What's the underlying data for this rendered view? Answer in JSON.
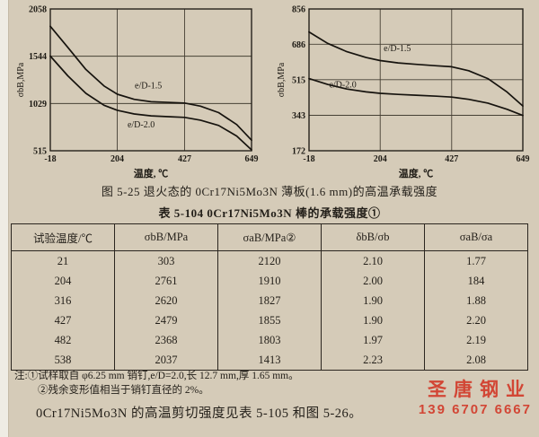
{
  "page": {
    "figure_caption": "图 5-25  退火态的 0Cr17Ni5Mo3N 薄板(1.6 mm)的高温承载强度",
    "table_title": "表 5-104  0Cr17Ni5Mo3N 棒的承载强度①",
    "notes": [
      "注:①试样取自 φ6.25 mm 销钉,e/D=2.0,长 12.7 mm,厚 1.65 mm。",
      "②残余变形值相当于销钉直径的 2%。"
    ],
    "footer_text": "0Cr17Ni5Mo3N 的高温剪切强度见表 5-105 和图 5-26。",
    "watermark": {
      "company": "圣唐钢业",
      "phone": "139 6707 6667",
      "color": "#d23423"
    }
  },
  "table": {
    "headers": [
      "试验温度/℃",
      "σbB/MPa",
      "σaB/MPa②",
      "δbB/σb",
      "σaB/σa"
    ],
    "rows": [
      [
        "21",
        "303",
        "2120",
        "2.10",
        "1.77"
      ],
      [
        "204",
        "2761",
        "1910",
        "2.00",
        "184"
      ],
      [
        "316",
        "2620",
        "1827",
        "1.90",
        "1.88"
      ],
      [
        "427",
        "2479",
        "1855",
        "1.90",
        "2.20"
      ],
      [
        "482",
        "2368",
        "1803",
        "1.97",
        "2.19"
      ],
      [
        "538",
        "2037",
        "1413",
        "2.23",
        "2.08"
      ]
    ]
  },
  "chart_data": [
    {
      "type": "line",
      "title": "",
      "xlabel": "温度, ℃",
      "ylabel": "σbB,MPa",
      "xlim": [
        -18,
        649
      ],
      "ylim": [
        515,
        2058
      ],
      "xticks": [
        -18,
        204,
        427,
        649
      ],
      "yticks": [
        515,
        1029,
        1544,
        2058
      ],
      "grid": true,
      "series": [
        {
          "name": "e/D-1.5",
          "label_at": [
            262,
            1195
          ],
          "points": [
            [
              -18,
              1870
            ],
            [
              40,
              1640
            ],
            [
              100,
              1400
            ],
            [
              160,
              1220
            ],
            [
              204,
              1130
            ],
            [
              260,
              1075
            ],
            [
              316,
              1048
            ],
            [
              380,
              1040
            ],
            [
              427,
              1035
            ],
            [
              480,
              1000
            ],
            [
              540,
              930
            ],
            [
              600,
              800
            ],
            [
              649,
              630
            ]
          ]
        },
        {
          "name": "e/D-2.0",
          "label_at": [
            238,
            770
          ],
          "points": [
            [
              -18,
              1545
            ],
            [
              40,
              1330
            ],
            [
              100,
              1140
            ],
            [
              160,
              1010
            ],
            [
              204,
              955
            ],
            [
              260,
              915
            ],
            [
              316,
              895
            ],
            [
              380,
              885
            ],
            [
              427,
              878
            ],
            [
              480,
              848
            ],
            [
              540,
              790
            ],
            [
              600,
              675
            ],
            [
              649,
              525
            ]
          ]
        }
      ]
    },
    {
      "type": "line",
      "title": "",
      "xlabel": "温度, ℃",
      "ylabel": "σbB,MPa",
      "xlim": [
        -18,
        649
      ],
      "ylim": [
        172,
        856
      ],
      "xticks": [
        -18,
        204,
        427,
        649
      ],
      "yticks": [
        172,
        343,
        515,
        686,
        856
      ],
      "grid": true,
      "series": [
        {
          "name": "e/D-1.5",
          "label_at": [
            215,
            652
          ],
          "points": [
            [
              -18,
              745
            ],
            [
              40,
              690
            ],
            [
              100,
              650
            ],
            [
              160,
              622
            ],
            [
              204,
              607
            ],
            [
              260,
              596
            ],
            [
              316,
              589
            ],
            [
              380,
              582
            ],
            [
              427,
              577
            ],
            [
              480,
              558
            ],
            [
              540,
              520
            ],
            [
              600,
              455
            ],
            [
              649,
              388
            ]
          ]
        },
        {
          "name": "e/D-2.0",
          "label_at": [
            45,
            478
          ],
          "points": [
            [
              -18,
              520
            ],
            [
              40,
              492
            ],
            [
              100,
              470
            ],
            [
              160,
              456
            ],
            [
              204,
              449
            ],
            [
              260,
              444
            ],
            [
              316,
              440
            ],
            [
              380,
              435
            ],
            [
              427,
              431
            ],
            [
              480,
              420
            ],
            [
              540,
              402
            ],
            [
              600,
              372
            ],
            [
              649,
              342
            ]
          ]
        }
      ]
    }
  ]
}
